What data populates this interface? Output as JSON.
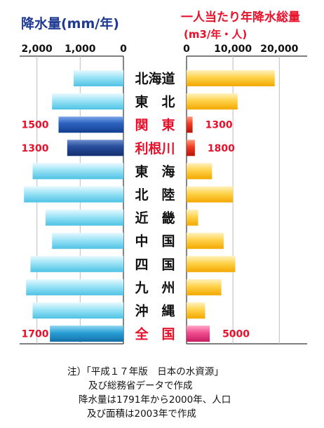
{
  "chart_data": [
    {
      "type": "bar",
      "orientation": "horizontal",
      "direction": "right-to-left",
      "title": "降水量(mm/年)",
      "ticks": [
        "2,000",
        "1,000",
        "0"
      ],
      "tick_values": [
        2000,
        1000,
        0
      ],
      "xlim": [
        0,
        2400
      ],
      "categories": [
        "北海道",
        "東　北",
        "関　東",
        "利根川",
        "東　海",
        "北　陸",
        "近　畿",
        "中　国",
        "四　国",
        "九　州",
        "沖　縄",
        "全　国"
      ],
      "values": [
        1150,
        1650,
        1500,
        1300,
        2100,
        2300,
        1800,
        1650,
        2150,
        2250,
        2100,
        1700
      ],
      "data_labels": [
        {
          "index": 2,
          "text": "1500"
        },
        {
          "index": 3,
          "text": "1300"
        },
        {
          "index": 11,
          "text": "1700"
        }
      ]
    },
    {
      "type": "bar",
      "orientation": "horizontal",
      "title": "一人当たり年降水総量",
      "subtitle": "(m3/年・人)",
      "ticks": [
        "0",
        "10,000",
        "20,000"
      ],
      "tick_values": [
        0,
        10000,
        20000
      ],
      "xlim": [
        0,
        26000
      ],
      "categories": [
        "北海道",
        "東　北",
        "関　東",
        "利根川",
        "東　海",
        "北　陸",
        "近　畿",
        "中　国",
        "四　国",
        "九　州",
        "沖　縄",
        "全　国"
      ],
      "values": [
        19000,
        11000,
        1300,
        1800,
        5500,
        10000,
        2500,
        8000,
        10500,
        7500,
        4000,
        5000
      ],
      "data_labels": [
        {
          "index": 2,
          "text": "1300"
        },
        {
          "index": 3,
          "text": "1800"
        },
        {
          "index": 11,
          "text": "5000"
        }
      ]
    }
  ],
  "highlighted_categories": [
    2,
    3,
    11
  ],
  "colors": {
    "left_title": "#1f3a93",
    "right_title": "#e8102a",
    "highlight_text": "#e8102a",
    "normal_text": "#111111",
    "left_light": "#6fd2ec",
    "left_dark_kanto": "#1a4fa8",
    "left_dark_tone": "#1a3f88",
    "left_national": "#1a8fc9",
    "right_normal": "#ffc21a",
    "right_red": "#e8251a",
    "right_pink": "#ee3f86"
  },
  "notes": [
    "注）「平成１７年版　日本の水資源」",
    "及び総務省データで作成",
    "降水量は1791年から2000年、人口",
    "及び面積は2003年で作成"
  ]
}
